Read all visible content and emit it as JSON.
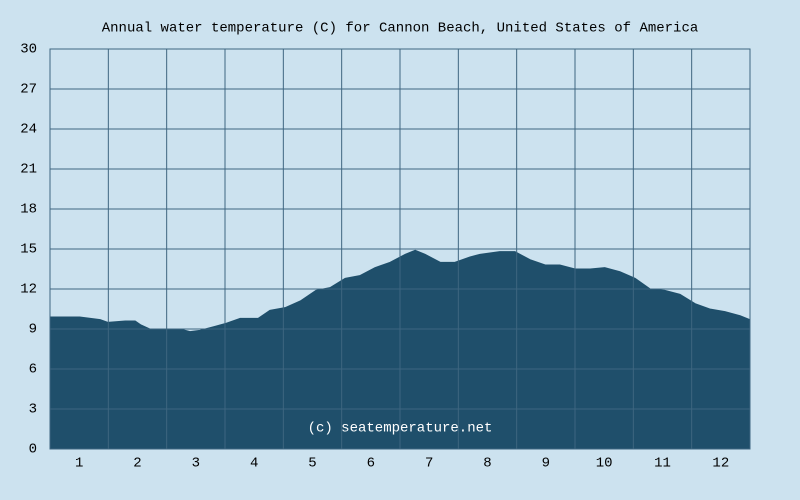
{
  "chart_data": {
    "type": "area",
    "title": "Annual water temperature (C) for Cannon Beach, United States of America",
    "annotation": "(c) seatemperature.net",
    "x": [
      0.5,
      1.01,
      1.36,
      1.49,
      1.79,
      1.96,
      2.06,
      2.21,
      2.49,
      2.73,
      2.9,
      3.07,
      3.33,
      3.5,
      3.76,
      4.07,
      4.27,
      4.53,
      4.79,
      5.06,
      5.3,
      5.56,
      5.81,
      6.07,
      6.33,
      6.59,
      6.76,
      6.93,
      7.19,
      7.44,
      7.7,
      7.87,
      8.21,
      8.47,
      8.73,
      8.99,
      9.24,
      9.5,
      9.76,
      10.01,
      10.27,
      10.53,
      10.79,
      11.04,
      11.3,
      11.56,
      11.81,
      12.07,
      12.33,
      12.5
    ],
    "values": [
      9.9,
      9.9,
      9.7,
      9.5,
      9.6,
      9.6,
      9.3,
      9.0,
      9.0,
      9.0,
      8.8,
      8.9,
      9.2,
      9.4,
      9.8,
      9.8,
      10.4,
      10.6,
      11.1,
      11.9,
      12.1,
      12.8,
      13.0,
      13.6,
      14.0,
      14.6,
      14.9,
      14.6,
      14.0,
      14.0,
      14.4,
      14.6,
      14.8,
      14.8,
      14.2,
      13.8,
      13.8,
      13.5,
      13.5,
      13.6,
      13.3,
      12.8,
      12.0,
      11.9,
      11.6,
      10.9,
      10.5,
      10.3,
      10.0,
      9.7
    ],
    "color": "#1f4f6b",
    "xlim": [
      0.5,
      12.5
    ],
    "xticks": [
      1,
      2,
      3,
      4,
      5,
      6,
      7,
      8,
      9,
      10,
      11,
      12
    ],
    "ylim": [
      0,
      30
    ],
    "yticks": [
      0,
      3,
      6,
      9,
      12,
      15,
      18,
      21,
      24,
      27,
      30
    ],
    "grid": true
  }
}
